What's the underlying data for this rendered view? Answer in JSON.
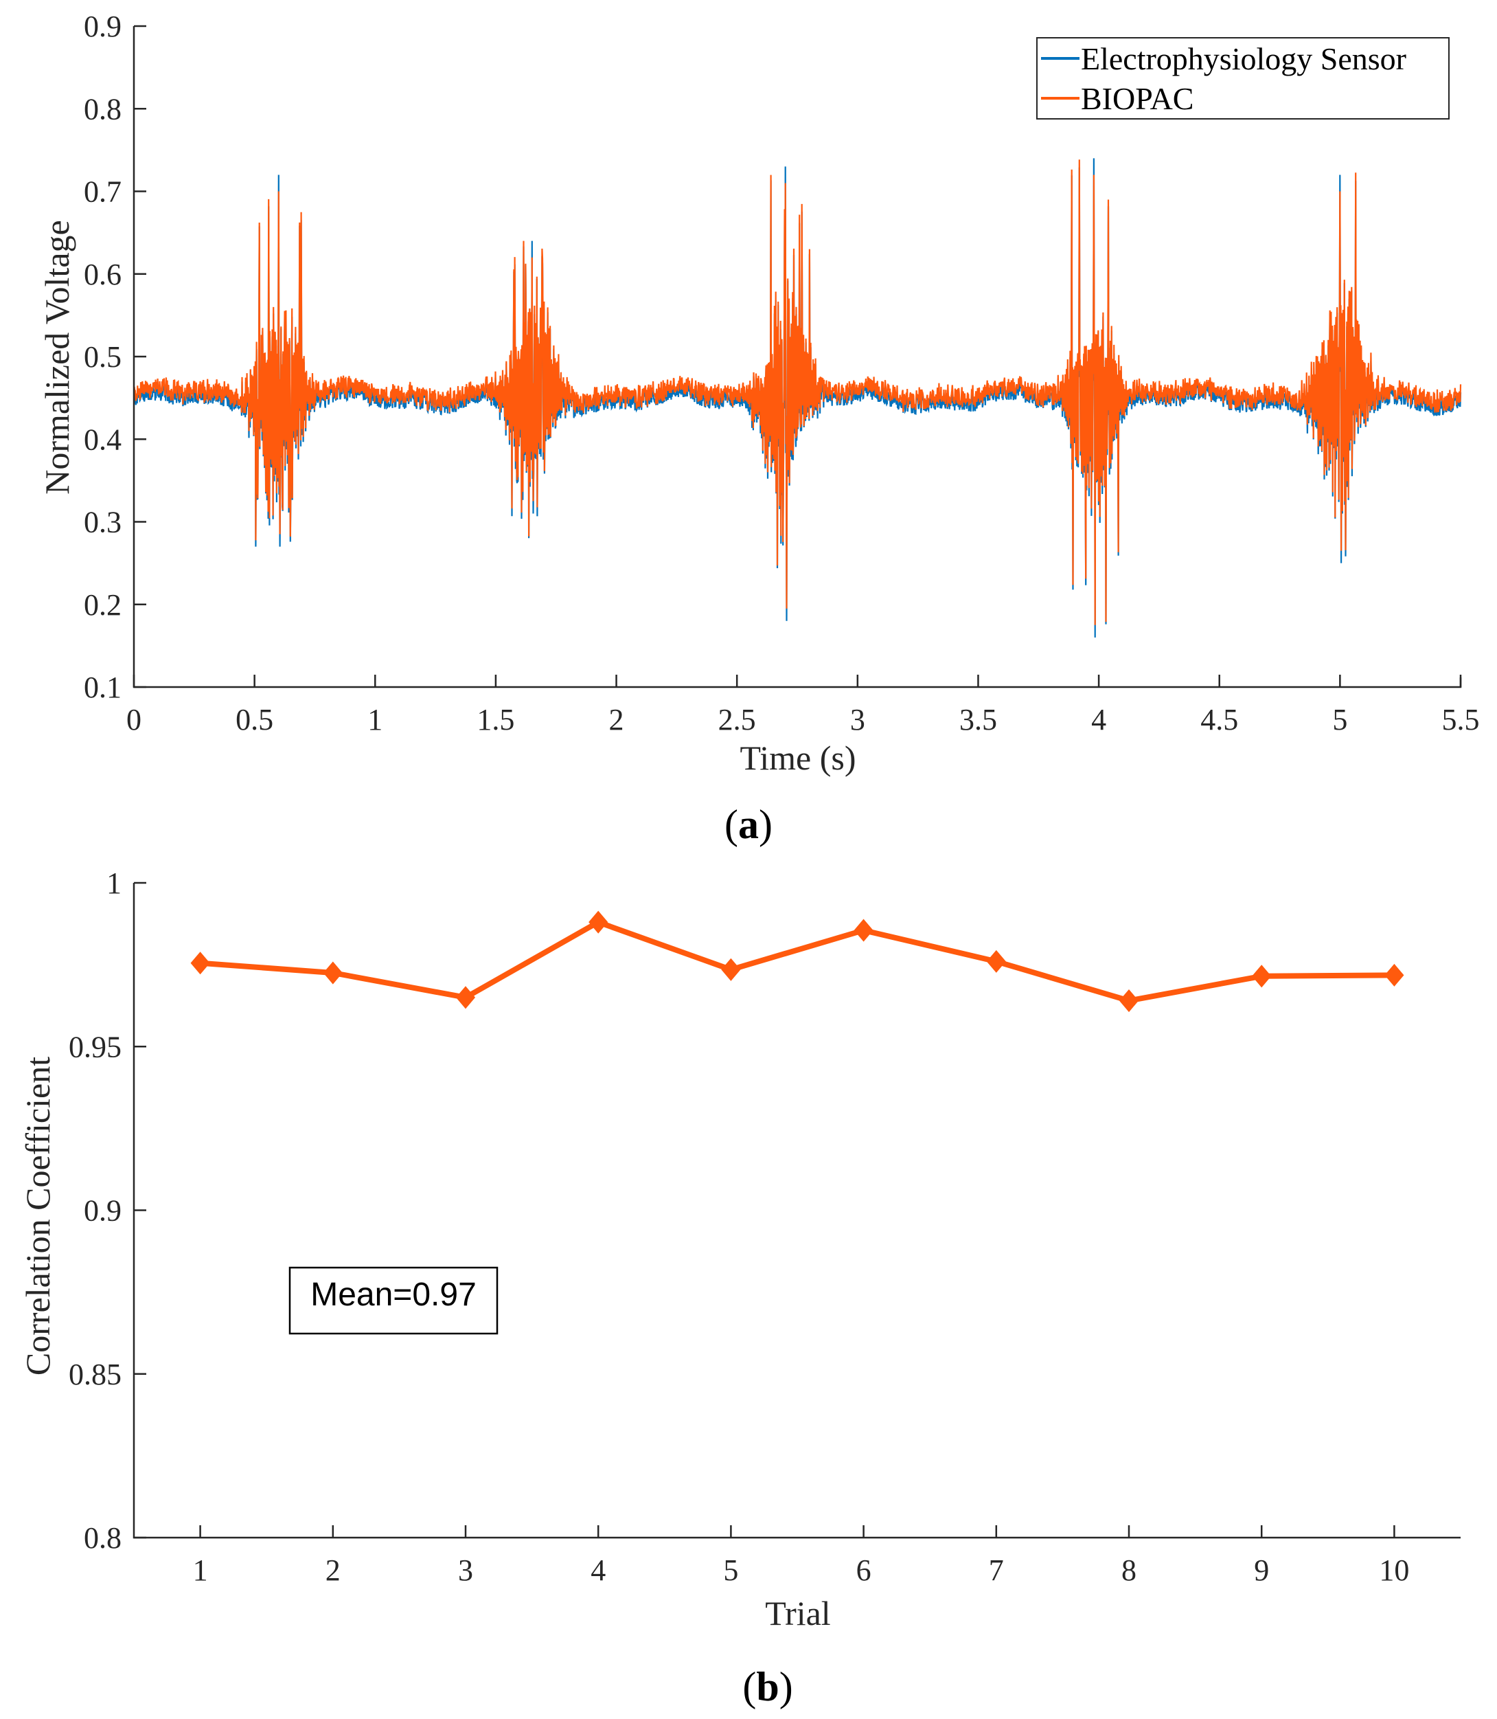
{
  "chart_data": [
    {
      "type": "line",
      "panel_label": "(a)",
      "panel_letter": "a",
      "xlabel": "Time (s)",
      "ylabel": "Normalized Voltage",
      "xlim": [
        0,
        5.5
      ],
      "ylim": [
        0.1,
        0.9
      ],
      "xticks": [
        "0",
        "0.5",
        "1",
        "1.5",
        "2",
        "2.5",
        "3",
        "3.5",
        "4",
        "4.5",
        "5",
        "5.5"
      ],
      "yticks": [
        "0.1",
        "0.2",
        "0.3",
        "0.4",
        "0.5",
        "0.6",
        "0.7",
        "0.8",
        "0.9"
      ],
      "baseline": 0.455,
      "burst_centers_s": [
        0.6,
        1.65,
        2.7,
        3.98,
        5.0
      ],
      "burst_peaks": [
        0.72,
        0.64,
        0.73,
        0.74,
        0.72
      ],
      "burst_troughs": [
        0.27,
        0.31,
        0.18,
        0.16,
        0.25
      ],
      "legend_position": "top-right",
      "series": [
        {
          "name": "Electrophysiology Sensor",
          "color": "#0072BD"
        },
        {
          "name": "BIOPAC",
          "color": "#FF5A0D"
        }
      ]
    },
    {
      "type": "line",
      "panel_label": "(b)",
      "panel_letter": "b",
      "xlabel": "Trial",
      "ylabel": "Correlation Coefficient",
      "xlim": [
        0.5,
        10.5
      ],
      "ylim": [
        0.8,
        1.0
      ],
      "xticks": [
        "1",
        "2",
        "3",
        "4",
        "5",
        "6",
        "7",
        "8",
        "9",
        "10"
      ],
      "yticks": [
        "0.8",
        "0.85",
        "0.9",
        "0.95",
        "1"
      ],
      "x": [
        1,
        2,
        3,
        4,
        5,
        6,
        7,
        8,
        9,
        10
      ],
      "series": [
        {
          "name": "Correlation",
          "color": "#FF5A0D",
          "values": [
            0.9755,
            0.9725,
            0.965,
            0.988,
            0.9735,
            0.9855,
            0.976,
            0.964,
            0.9715,
            0.9718
          ]
        }
      ],
      "annotation": "Mean=0.97"
    }
  ]
}
